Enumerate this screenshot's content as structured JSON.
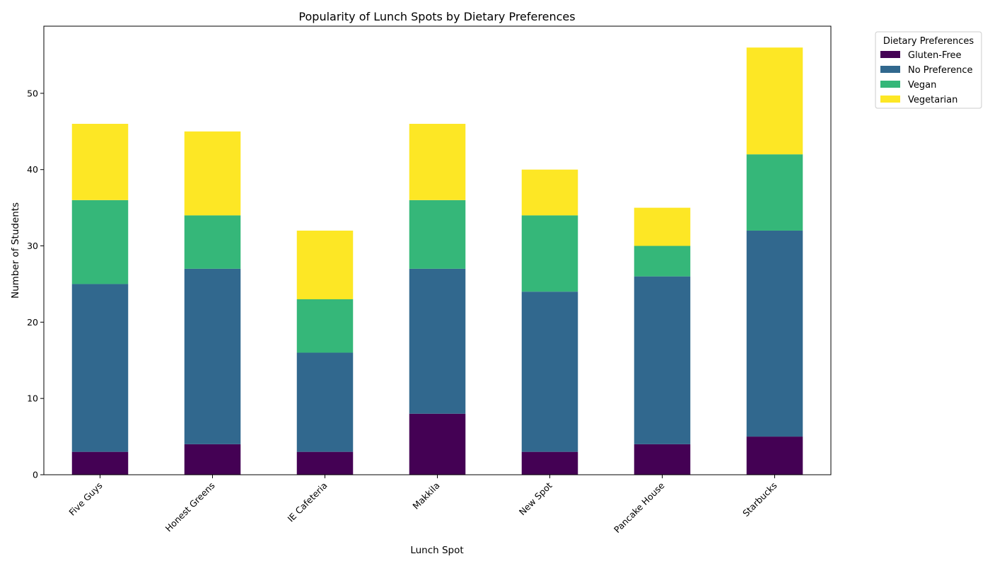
{
  "chart_data": {
    "type": "bar",
    "stacked": true,
    "title": "Popularity of Lunch Spots by Dietary Preferences",
    "xlabel": "Lunch Spot",
    "ylabel": "Number of Students",
    "categories": [
      "Five Guys",
      "Honest Greens",
      "IE Cafeteria",
      "Makkila",
      "New Spot",
      "Pancake House",
      "Starbucks"
    ],
    "series": [
      {
        "name": "Gluten-Free",
        "color": "#440154",
        "values": [
          3,
          4,
          3,
          8,
          3,
          4,
          5
        ]
      },
      {
        "name": "No Preference",
        "color": "#31688e",
        "values": [
          22,
          23,
          13,
          19,
          21,
          22,
          27
        ]
      },
      {
        "name": "Vegan",
        "color": "#35b779",
        "values": [
          11,
          7,
          7,
          9,
          10,
          4,
          10
        ]
      },
      {
        "name": "Vegetarian",
        "color": "#fde725",
        "values": [
          10,
          11,
          9,
          10,
          6,
          5,
          14
        ]
      }
    ],
    "ylim": [
      0,
      58.8
    ],
    "yticks": [
      0,
      10,
      20,
      30,
      40,
      50
    ],
    "grid": false,
    "legend": {
      "title": "Dietary Preferences",
      "placement": "outside top-right"
    }
  }
}
